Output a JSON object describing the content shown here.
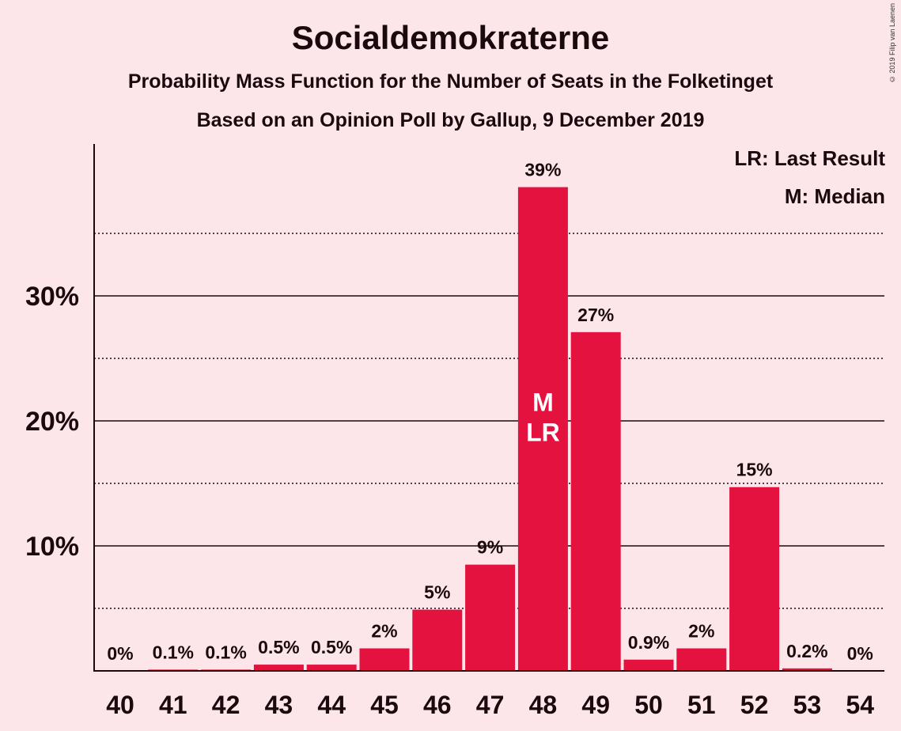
{
  "header": {
    "title": "Socialdemokraterne",
    "subtitle": "Probability Mass Function for the Number of Seats in the Folketinget",
    "subtitle2": "Based on an Opinion Poll by Gallup, 9 December 2019",
    "copyright": "© 2019 Filip van Laenen"
  },
  "legend": {
    "lr": "LR: Last Result",
    "m": "M: Median"
  },
  "colors": {
    "bar": "#e3123e",
    "background": "#fde6ea"
  },
  "chart_data": {
    "type": "bar",
    "title": "Socialdemokraterne",
    "categories": [
      "40",
      "41",
      "42",
      "43",
      "44",
      "45",
      "46",
      "47",
      "48",
      "49",
      "50",
      "51",
      "52",
      "53",
      "54"
    ],
    "values": [
      0,
      0.1,
      0.1,
      0.5,
      0.5,
      1.8,
      4.9,
      8.5,
      38.7,
      27.1,
      0.9,
      1.8,
      14.7,
      0.2,
      0
    ],
    "data_labels": [
      "0%",
      "0.1%",
      "0.1%",
      "0.5%",
      "0.5%",
      "2%",
      "5%",
      "9%",
      "39%",
      "27%",
      "0.9%",
      "2%",
      "15%",
      "0.2%",
      "0%"
    ],
    "yticks": [
      10,
      20,
      30
    ],
    "ytick_labels": [
      "10%",
      "20%",
      "30%"
    ],
    "minor_gridlines": [
      5,
      15,
      25,
      35
    ],
    "ylim": [
      0,
      42
    ],
    "median_seat": "48",
    "last_result_seat": "48",
    "median_marker": "M",
    "last_result_marker": "LR",
    "legend_position": "top-right",
    "grid": true
  }
}
